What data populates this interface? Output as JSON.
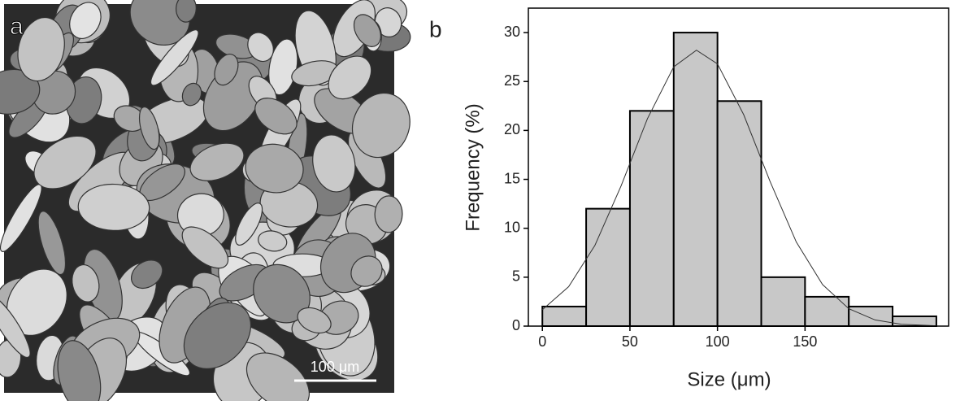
{
  "panels": {
    "a": {
      "label": "a",
      "scale_bar": "100 μm"
    },
    "b": {
      "label": "b"
    }
  },
  "chart_data": {
    "type": "histogram",
    "x_label": "Size (μm)",
    "y_label": "Frequency (%)",
    "bins": [
      0,
      25,
      50,
      75,
      100,
      125,
      150,
      175,
      200,
      225
    ],
    "values": [
      2,
      12,
      22,
      30,
      23,
      5,
      3,
      2,
      1
    ],
    "color": "#c8c8c8",
    "fit": {
      "x": [
        0,
        15,
        30,
        45,
        60,
        75,
        88,
        100,
        115,
        130,
        145,
        160,
        175,
        190,
        205,
        225
      ],
      "y": [
        1.67,
        4.03,
        8.25,
        14.35,
        21.2,
        26.5,
        28.2,
        26.8,
        21.6,
        14.8,
        8.6,
        4.25,
        1.78,
        0.63,
        0.19,
        0.03
      ]
    },
    "xlim": [
      -8,
      232
    ],
    "ylim": [
      0,
      32.5
    ],
    "xticks": [
      0,
      50,
      100,
      150
    ],
    "yticks": [
      0,
      5,
      10,
      15,
      20,
      25,
      30
    ]
  }
}
